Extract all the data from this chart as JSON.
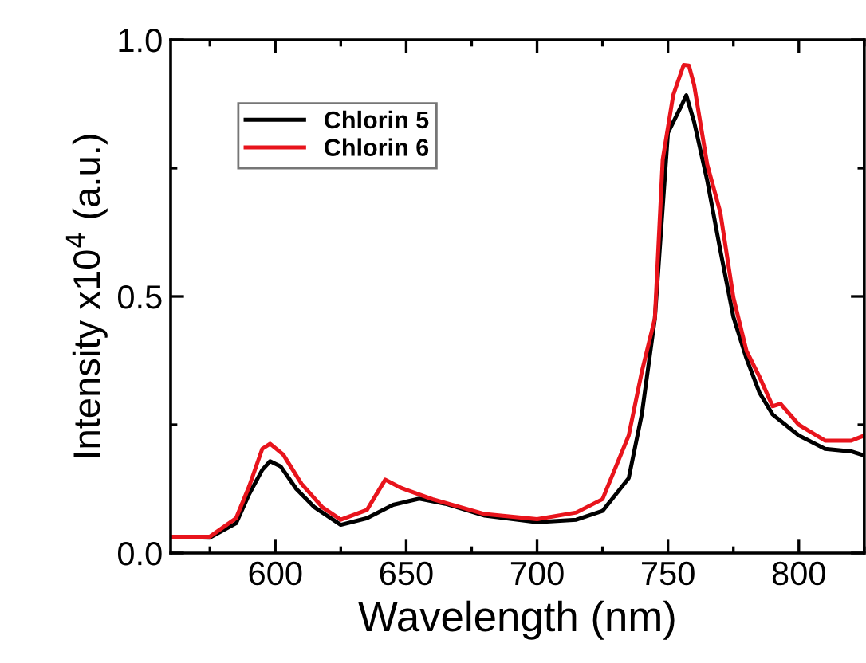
{
  "chart_data": {
    "type": "line",
    "xlabel": "Wavelength (nm)",
    "ylabel": "Intensity x10$^{4}$ (a.u.)",
    "xlim": [
      560,
      825
    ],
    "xticks": [
      600,
      650,
      700,
      750,
      800
    ],
    "ylim": [
      0,
      1
    ],
    "yticks": [
      {
        "value": 0,
        "label": "0.0"
      },
      0.5,
      {
        "value": 1,
        "label": "1.0"
      }
    ],
    "legend": "top left",
    "grid": false,
    "marker": "none",
    "line_style": "solid",
    "series": [
      {
        "name": "Chlorin 5",
        "color": "#000000",
        "x": [
          560,
          575,
          585,
          590,
          595,
          598,
          602,
          608,
          615,
          625,
          635,
          645,
          655,
          665,
          680,
          700,
          715,
          725,
          735,
          740,
          745,
          750,
          755,
          757,
          760,
          765,
          770,
          775,
          780,
          785,
          790,
          800,
          810,
          820,
          825
        ],
        "values": [
          0.032,
          0.03,
          0.058,
          0.115,
          0.162,
          0.179,
          0.169,
          0.125,
          0.089,
          0.055,
          0.068,
          0.094,
          0.106,
          0.096,
          0.073,
          0.06,
          0.065,
          0.082,
          0.146,
          0.27,
          0.457,
          0.819,
          0.87,
          0.892,
          0.84,
          0.726,
          0.59,
          0.46,
          0.379,
          0.312,
          0.27,
          0.229,
          0.203,
          0.198,
          0.19
        ]
      },
      {
        "name": "Chlorin 6",
        "color": "#e8141c",
        "x": [
          560,
          575,
          585,
          590,
          595,
          598,
          603,
          610,
          618,
          625,
          635,
          642,
          648,
          660,
          680,
          700,
          715,
          725,
          735,
          740,
          745,
          748,
          752,
          756,
          758,
          760,
          765,
          770,
          775,
          780,
          785,
          790,
          793,
          800,
          810,
          820,
          825
        ],
        "values": [
          0.032,
          0.032,
          0.068,
          0.13,
          0.203,
          0.213,
          0.192,
          0.135,
          0.089,
          0.065,
          0.084,
          0.143,
          0.127,
          0.105,
          0.076,
          0.066,
          0.079,
          0.105,
          0.229,
          0.353,
          0.457,
          0.767,
          0.892,
          0.951,
          0.95,
          0.912,
          0.757,
          0.664,
          0.498,
          0.394,
          0.343,
          0.286,
          0.291,
          0.25,
          0.219,
          0.219,
          0.229
        ]
      }
    ]
  }
}
